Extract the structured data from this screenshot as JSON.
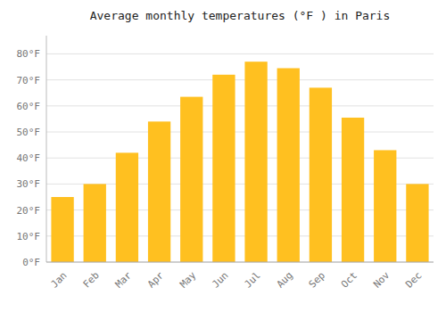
{
  "chart_data": {
    "type": "bar",
    "title": "Average monthly temperatures (°F ) in Paris",
    "categories": [
      "Jan",
      "Feb",
      "Mar",
      "Apr",
      "May",
      "Jun",
      "Jul",
      "Aug",
      "Sep",
      "Oct",
      "Nov",
      "Dec"
    ],
    "values": [
      25,
      30,
      42,
      54,
      63.5,
      72,
      77,
      74.5,
      67,
      55.5,
      43,
      30
    ],
    "color": "#FFC020",
    "ylim": [
      0,
      87
    ],
    "yticks": [
      {
        "value": 0,
        "label": "0°F"
      },
      {
        "value": 10,
        "label": "10°F"
      },
      {
        "value": 20,
        "label": "20°F"
      },
      {
        "value": 30,
        "label": "30°F"
      },
      {
        "value": 40,
        "label": "40°F"
      },
      {
        "value": 50,
        "label": "50°F"
      },
      {
        "value": 60,
        "label": "60°F"
      },
      {
        "value": 70,
        "label": "70°F"
      },
      {
        "value": 80,
        "label": "80°F"
      }
    ],
    "grid": true
  }
}
